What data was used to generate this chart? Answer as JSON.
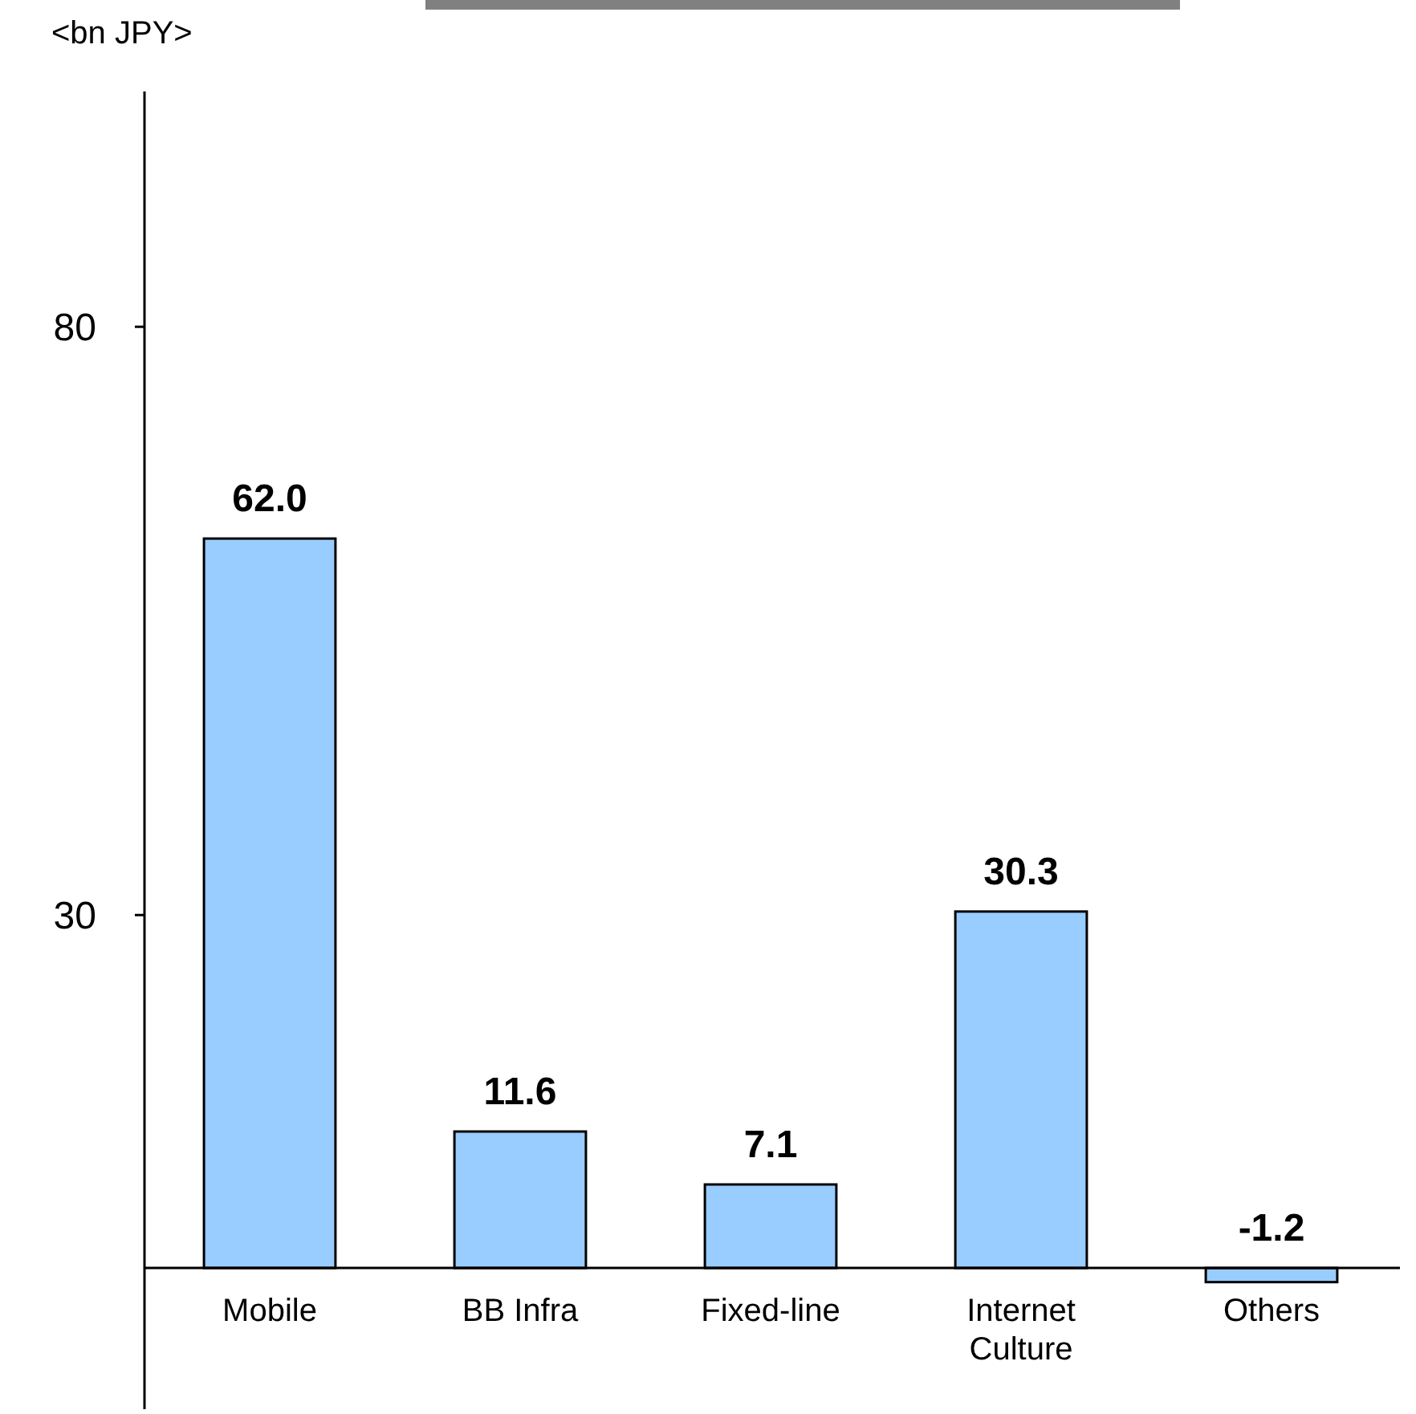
{
  "chart_data": {
    "type": "bar",
    "ylabel": "<bn JPY>",
    "categories": [
      "Mobile",
      "BB Infra",
      "Fixed-line",
      "Internet Culture",
      "Others"
    ],
    "values": [
      62.0,
      11.6,
      7.1,
      30.3,
      -1.2
    ],
    "color": "#99ccff",
    "value_labels": [
      "62.0",
      "11.6",
      "7.1",
      "30.3",
      "-1.2"
    ],
    "ylim": [
      -12,
      100
    ],
    "yticks": [
      30,
      80
    ],
    "grid": false
  }
}
